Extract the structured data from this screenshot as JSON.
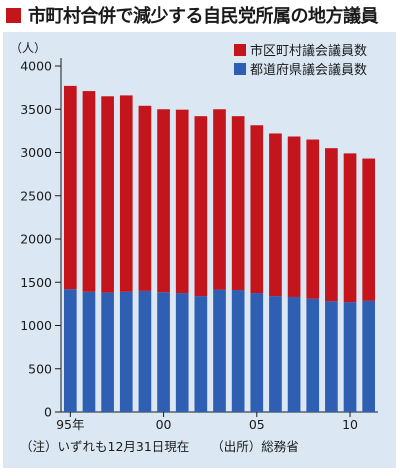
{
  "title": "市町村合併で減少する自民党所属の地方議員",
  "colors": {
    "accent": "#c4141c",
    "municipal": "#c4141c",
    "prefectural": "#2f5fb3",
    "background": "#dbe8f4"
  },
  "notes": {
    "note": "（注）いずれも12月31日現在",
    "source": "（出所）総務省"
  },
  "chart_data": {
    "type": "bar",
    "stacked": true,
    "unit_label": "（人）",
    "x": [
      1995,
      1996,
      1997,
      1998,
      1999,
      2000,
      2001,
      2002,
      2003,
      2004,
      2005,
      2006,
      2007,
      2008,
      2009,
      2010,
      2011
    ],
    "x_tick_labels": [
      {
        "x": 1995,
        "label": "95年"
      },
      {
        "x": 2000,
        "label": "00"
      },
      {
        "x": 2005,
        "label": "05"
      },
      {
        "x": 2010,
        "label": "10"
      }
    ],
    "y_ticks": [
      0,
      500,
      1000,
      1500,
      2000,
      2500,
      3000,
      3500,
      4000
    ],
    "ylim": [
      0,
      4000
    ],
    "series": [
      {
        "name": "都道府県議会議員数",
        "color": "#2f5fb3",
        "values": [
          1420,
          1390,
          1380,
          1390,
          1400,
          1385,
          1375,
          1340,
          1415,
          1410,
          1375,
          1340,
          1330,
          1310,
          1280,
          1270,
          1285
        ]
      },
      {
        "name": "市区町村議会議員数",
        "color": "#c4141c",
        "values": [
          2350,
          2320,
          2270,
          2270,
          2140,
          2115,
          2120,
          2080,
          2085,
          2010,
          1940,
          1880,
          1855,
          1840,
          1770,
          1720,
          1645
        ]
      }
    ],
    "legend": {
      "position": "top-right",
      "order": [
        "市区町村議会議員数",
        "都道府県議会議員数"
      ]
    },
    "grid": false
  }
}
